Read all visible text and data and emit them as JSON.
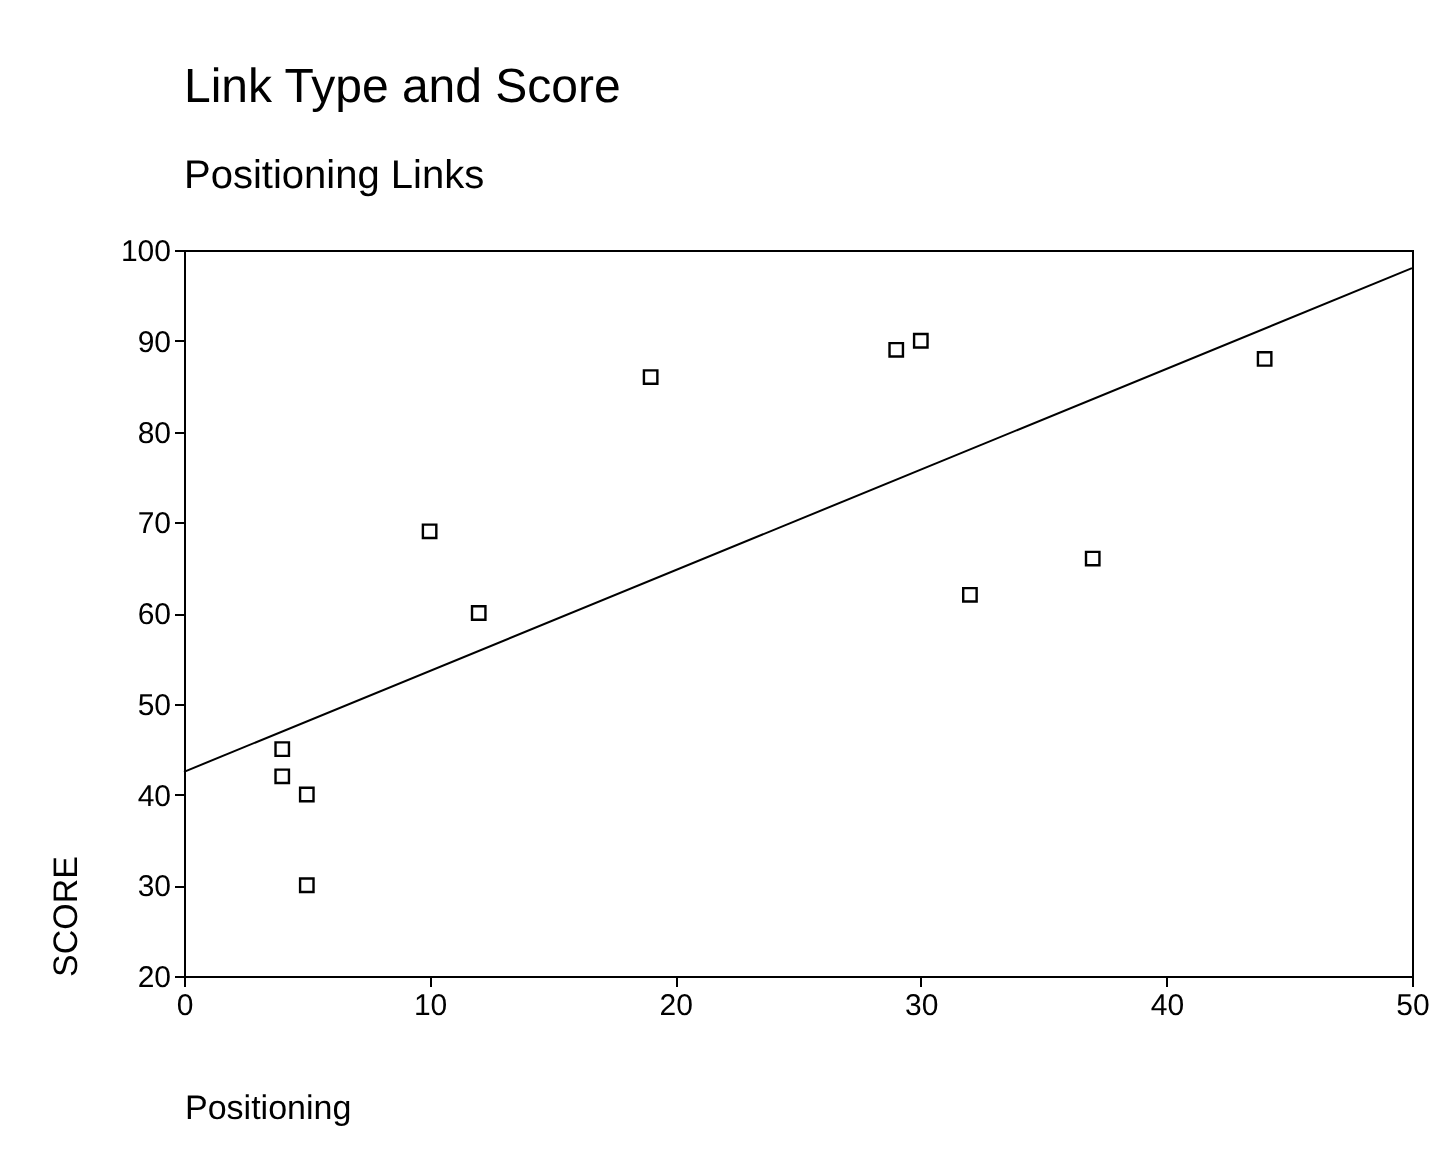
{
  "chart_data": {
    "type": "scatter",
    "title": "Link Type and Score",
    "subtitle": "Positioning Links",
    "xlabel": "Positioning",
    "ylabel": "SCORE",
    "xlim": [
      0,
      50
    ],
    "xticks": [
      0,
      10,
      20,
      30,
      40,
      50
    ],
    "ylim": [
      20,
      100
    ],
    "yticks": [
      20,
      30,
      40,
      50,
      60,
      70,
      80,
      90,
      100
    ],
    "grid": false,
    "series": [
      {
        "marker": "square",
        "color": "#000000",
        "x": [
          4,
          4,
          5,
          5,
          10,
          12,
          19,
          29,
          30,
          32,
          37,
          44
        ],
        "values": [
          45,
          42,
          40,
          30,
          69,
          60,
          86,
          89,
          90,
          62,
          66,
          88
        ]
      },
      {
        "type": "line",
        "color": "#000000",
        "x": [
          0,
          50
        ],
        "values": [
          42.5,
          98
        ]
      }
    ]
  }
}
